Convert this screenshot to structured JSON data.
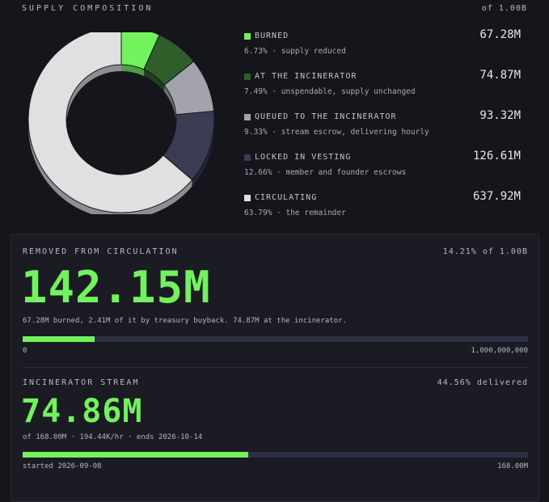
{
  "supply": {
    "title": "SUPPLY COMPOSITION",
    "of_total": "of 1.00B",
    "legend": [
      {
        "name": "BURNED",
        "value": "67.28M",
        "desc": "6.73% · supply reduced",
        "color": "#72f25d",
        "fraction": 0.0673
      },
      {
        "name": "AT THE INCINERATOR",
        "value": "74.87M",
        "desc": "7.49% · unspendable, supply unchanged",
        "color": "#2f5e2a",
        "fraction": 0.0749
      },
      {
        "name": "QUEUED TO THE INCINERATOR",
        "value": "93.32M",
        "desc": "9.33% · stream escrow, delivering hourly",
        "color": "#a3a3ac",
        "fraction": 0.0933
      },
      {
        "name": "LOCKED IN VESTING",
        "value": "126.61M",
        "desc": "12.66% · member and founder escrows",
        "color": "#3b3b53",
        "fraction": 0.1266
      },
      {
        "name": "CIRCULATING",
        "value": "637.92M",
        "desc": "63.79% · the remainder",
        "color": "#e0e0e0",
        "fraction": 0.6379
      }
    ]
  },
  "removed": {
    "label": "REMOVED FROM CIRCULATION",
    "right_label": "14.21% of 1.00B",
    "big_value": "142.15M",
    "note": "67.28M burned, 2.41M of it by treasury buyback. 74.87M at the incinerator.",
    "progress": 0.1421,
    "tick_min": "0",
    "tick_max": "1,000,000,000"
  },
  "stream": {
    "label": "INCINERATOR STREAM",
    "right_label": "44.56% delivered",
    "big_value": "74.86M",
    "note": "of 168.00M · 194.44K/hr · ends 2026-10-14",
    "progress": 0.4456,
    "tick_start": "started 2026-09-08",
    "tick_end": "168.00M"
  }
}
